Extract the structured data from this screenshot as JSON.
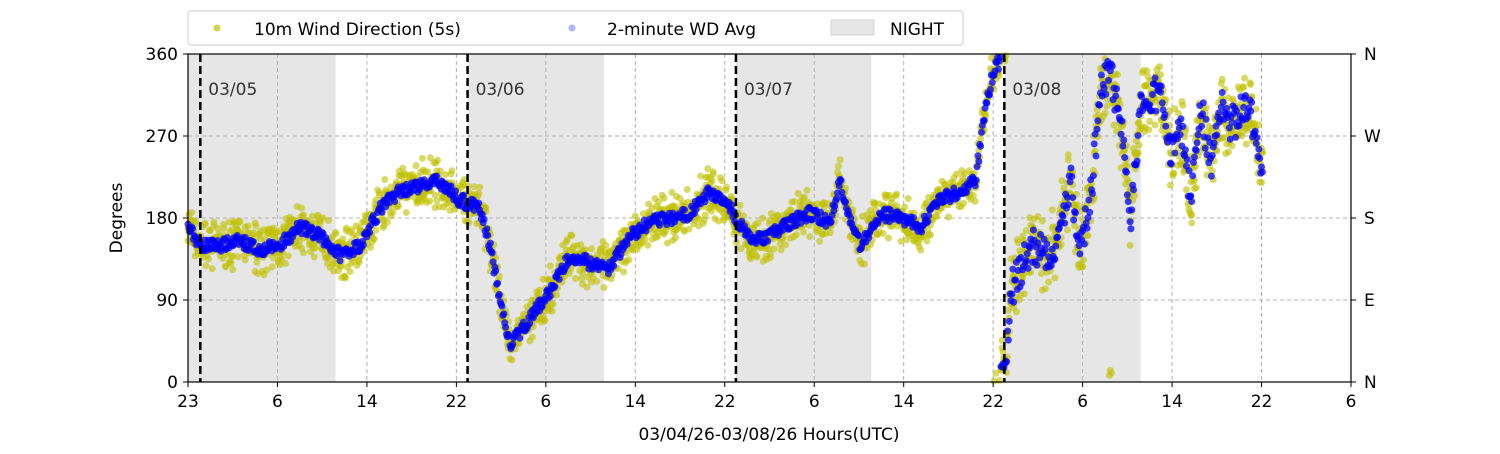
{
  "chart_data": {
    "type": "scatter",
    "xlabel": "03/04/26-03/08/26  Hours(UTC)",
    "ylabel": "Degrees",
    "x_unit": "hours since 03/04 23:00 UTC",
    "xlim": [
      0,
      104
    ],
    "ylim": [
      0,
      360
    ],
    "x_ticks": [
      0,
      8,
      16,
      24,
      32,
      40,
      48,
      56,
      64,
      72,
      80,
      88,
      96,
      104
    ],
    "x_tick_labels": [
      "23",
      "6",
      "14",
      "22",
      "6",
      "14",
      "22",
      "6",
      "14",
      "22",
      "6",
      "14",
      "22",
      "6"
    ],
    "y_ticks": [
      0,
      90,
      180,
      270,
      360
    ],
    "y_tick_labels": [
      "0",
      "90",
      "180",
      "270",
      "360"
    ],
    "y2_tick_labels": [
      "N",
      "E",
      "S",
      "W",
      "N"
    ],
    "grid": true,
    "legend": {
      "placement": "top-left above plot",
      "entries": [
        "10m Wind Direction (5s)",
        "2-minute WD Avg",
        "NIGHT"
      ]
    },
    "colors": {
      "wd5s": "#bfbf00",
      "avg": "#0000ff",
      "night": "#e6e6e6"
    },
    "midnights": [
      {
        "x": 1.1,
        "label": "03/05"
      },
      {
        "x": 25,
        "label": "03/06"
      },
      {
        "x": 49,
        "label": "03/07"
      },
      {
        "x": 73,
        "label": "03/08"
      }
    ],
    "night_periods": [
      [
        0,
        13.2
      ],
      [
        25,
        37.2
      ],
      [
        49,
        61.1
      ],
      [
        73,
        85.2
      ]
    ],
    "series": [
      {
        "name": "2-minute WD Avg",
        "points": [
          [
            0,
            170
          ],
          [
            1.1,
            150
          ],
          [
            2.9,
            150
          ],
          [
            4.7,
            155
          ],
          [
            6.4,
            145
          ],
          [
            8.2,
            150
          ],
          [
            10,
            170
          ],
          [
            11.8,
            160
          ],
          [
            13.6,
            140
          ],
          [
            15.4,
            150
          ],
          [
            17.2,
            190
          ],
          [
            18.9,
            210
          ],
          [
            20.7,
            215
          ],
          [
            22.5,
            220
          ],
          [
            24.3,
            200
          ],
          [
            26.1,
            190
          ],
          [
            27,
            150
          ],
          [
            27.9,
            90
          ],
          [
            28.8,
            40
          ],
          [
            30.6,
            70
          ],
          [
            32.4,
            100
          ],
          [
            34.2,
            140
          ],
          [
            35.9,
            130
          ],
          [
            37.7,
            125
          ],
          [
            39.5,
            160
          ],
          [
            41.3,
            175
          ],
          [
            43.1,
            180
          ],
          [
            44.9,
            185
          ],
          [
            46.7,
            210
          ],
          [
            48.5,
            190
          ],
          [
            50.3,
            155
          ],
          [
            52,
            160
          ],
          [
            53.8,
            175
          ],
          [
            55.6,
            185
          ],
          [
            57.4,
            175
          ],
          [
            58.3,
            220
          ],
          [
            59.2,
            180
          ],
          [
            60.1,
            150
          ],
          [
            61.9,
            185
          ],
          [
            63.7,
            180
          ],
          [
            65.5,
            170
          ],
          [
            67.3,
            200
          ],
          [
            69.1,
            210
          ],
          [
            70.4,
            220
          ],
          [
            71.3,
            300
          ],
          [
            72.2,
            350
          ],
          [
            73.1,
            20
          ],
          [
            73.6,
            100
          ],
          [
            75.3,
            150
          ],
          [
            77.1,
            140
          ],
          [
            78,
            170
          ],
          [
            78.9,
            220
          ],
          [
            79.8,
            150
          ],
          [
            80.7,
            200
          ],
          [
            81.6,
            320
          ],
          [
            82.5,
            340
          ],
          [
            83.4,
            280
          ],
          [
            84.3,
            180
          ],
          [
            85.2,
            300
          ],
          [
            86.1,
            310
          ],
          [
            87,
            320
          ],
          [
            87.9,
            250
          ],
          [
            88.8,
            280
          ],
          [
            89.7,
            200
          ],
          [
            90.6,
            300
          ],
          [
            91.5,
            240
          ],
          [
            92.4,
            300
          ],
          [
            93.3,
            280
          ],
          [
            94.2,
            300
          ],
          [
            95.1,
            290
          ],
          [
            96.1,
            230
          ]
        ]
      },
      {
        "name": "10m Wind Direction (5s)",
        "spread_deg": 30,
        "follows": "2-minute WD Avg"
      }
    ]
  }
}
